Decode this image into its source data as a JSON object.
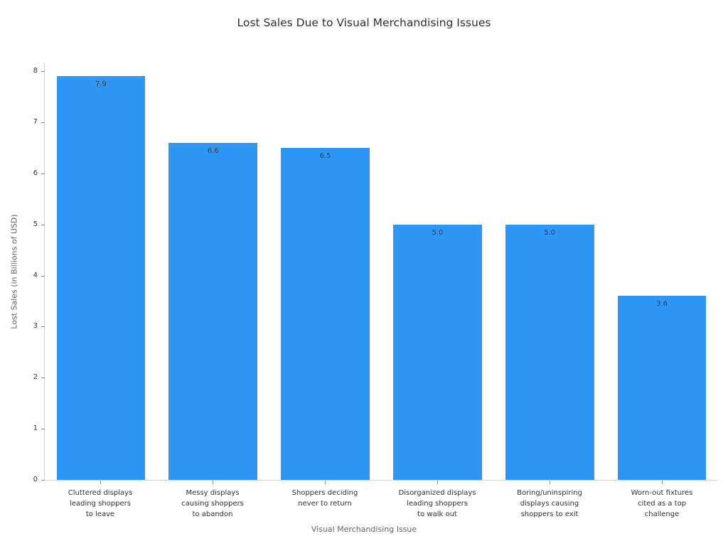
{
  "chart_data": {
    "type": "bar",
    "title": "Lost Sales Due to Visual Merchandising Issues",
    "xlabel": "Visual Merchandising Issue",
    "ylabel": "Lost Sales (in Billions of USD)",
    "categories": [
      "Cluttered displays\nleading shoppers\nto leave",
      "Messy displays\ncausing shoppers\nto abandon",
      "Shoppers deciding\nnever to return",
      "Disorganized displays\nleading shoppers\nto walk out",
      "Boring/uninspiring\ndisplays causing\nshoppers to exit",
      "Worn-out fixtures\ncited as a top\nchallenge"
    ],
    "values": [
      7.9,
      6.6,
      6.5,
      5.0,
      5.0,
      3.6
    ],
    "value_labels": [
      "7.9",
      "6.6",
      "6.5",
      "5.0",
      "5.0",
      "3.6"
    ],
    "yticks": [
      0,
      1,
      2,
      3,
      4,
      5,
      6,
      7,
      8
    ],
    "ylim": [
      0,
      8.17
    ],
    "bar_color": "#2E96F5",
    "value_label_color": "#3d3d3d",
    "grid": false,
    "legend": null,
    "background_color": "#ffffff"
  }
}
